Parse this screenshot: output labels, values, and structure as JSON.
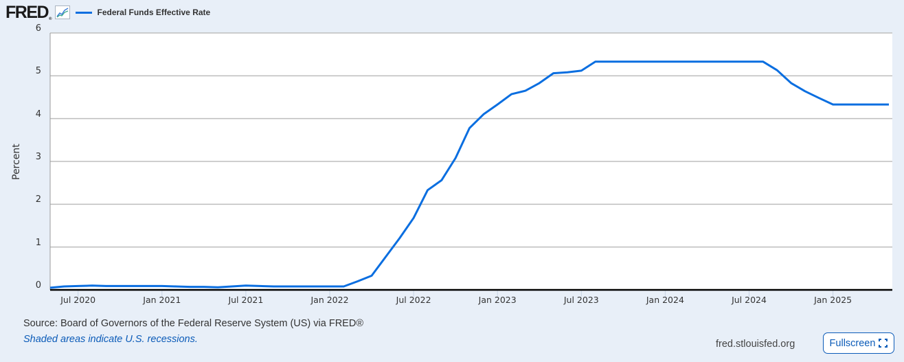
{
  "header": {
    "logo_text": "FRED",
    "logo_reg": "®",
    "logo_icon": "line-chart-icon",
    "series_label": "Federal Funds Effective Rate",
    "series_color": "#0a6ee0"
  },
  "axes": {
    "ylabel": "Percent",
    "yticks": [
      "0",
      "1",
      "2",
      "3",
      "4",
      "5",
      "6"
    ],
    "xticks": [
      "Jul 2020",
      "Jan 2021",
      "Jul 2021",
      "Jan 2022",
      "Jul 2022",
      "Jan 2023",
      "Jul 2023",
      "Jan 2024",
      "Jul 2024",
      "Jan 2025"
    ]
  },
  "footer": {
    "source": "Source: Board of Governors of the Federal Reserve System (US) via FRED®",
    "recession_note": "Shaded areas indicate U.S. recessions.",
    "site": "fred.stlouisfed.org",
    "fullscreen_label": "Fullscreen",
    "fullscreen_icon": "expand-icon"
  },
  "chart_data": {
    "type": "line",
    "title": "Federal Funds Effective Rate",
    "xlabel": "",
    "ylabel": "Percent",
    "ylim": [
      0,
      6
    ],
    "grid": true,
    "legend_position": "top-left",
    "x": [
      "2020-05",
      "2020-06",
      "2020-07",
      "2020-08",
      "2020-09",
      "2020-10",
      "2020-11",
      "2020-12",
      "2021-01",
      "2021-02",
      "2021-03",
      "2021-04",
      "2021-05",
      "2021-06",
      "2021-07",
      "2021-08",
      "2021-09",
      "2021-10",
      "2021-11",
      "2021-12",
      "2022-01",
      "2022-02",
      "2022-03",
      "2022-04",
      "2022-05",
      "2022-06",
      "2022-07",
      "2022-08",
      "2022-09",
      "2022-10",
      "2022-11",
      "2022-12",
      "2023-01",
      "2023-02",
      "2023-03",
      "2023-04",
      "2023-05",
      "2023-06",
      "2023-07",
      "2023-08",
      "2023-09",
      "2023-10",
      "2023-11",
      "2023-12",
      "2024-01",
      "2024-02",
      "2024-03",
      "2024-04",
      "2024-05",
      "2024-06",
      "2024-07",
      "2024-08",
      "2024-09",
      "2024-10",
      "2024-11",
      "2024-12",
      "2025-01",
      "2025-02",
      "2025-03",
      "2025-04",
      "2025-05"
    ],
    "series": [
      {
        "name": "Federal Funds Effective Rate",
        "color": "#0a6ee0",
        "values": [
          0.05,
          0.08,
          0.09,
          0.1,
          0.09,
          0.09,
          0.09,
          0.09,
          0.09,
          0.08,
          0.07,
          0.07,
          0.06,
          0.08,
          0.1,
          0.09,
          0.08,
          0.08,
          0.08,
          0.08,
          0.08,
          0.08,
          0.2,
          0.33,
          0.77,
          1.21,
          1.68,
          2.33,
          2.56,
          3.08,
          3.78,
          4.1,
          4.33,
          4.57,
          4.65,
          4.83,
          5.06,
          5.08,
          5.12,
          5.33,
          5.33,
          5.33,
          5.33,
          5.33,
          5.33,
          5.33,
          5.33,
          5.33,
          5.33,
          5.33,
          5.33,
          5.33,
          5.13,
          4.83,
          4.64,
          4.48,
          4.33,
          4.33,
          4.33,
          4.33,
          4.33
        ]
      }
    ]
  }
}
